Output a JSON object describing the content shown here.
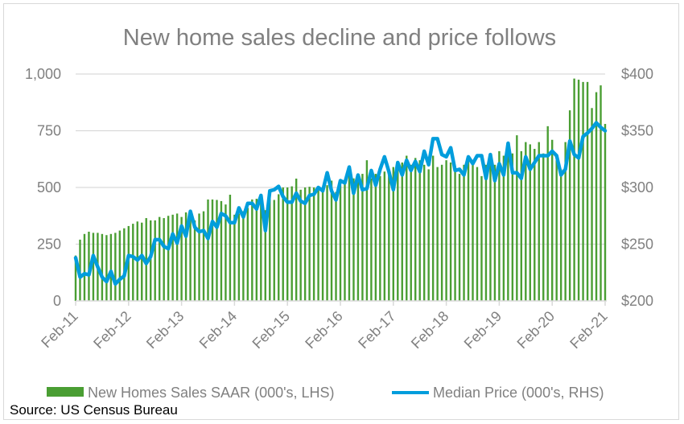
{
  "chart_data": {
    "type": "bar+line",
    "title": "New home sales decline and price follows",
    "x_tick_labels": [
      "Feb-11",
      "Feb-12",
      "Feb-13",
      "Feb-14",
      "Feb-15",
      "Feb-16",
      "Feb-17",
      "Feb-18",
      "Feb-19",
      "Feb-20",
      "Feb-21"
    ],
    "x_range": [
      "Feb-11",
      "Feb-21"
    ],
    "frequency": "monthly",
    "left_axis": {
      "ylim": [
        0,
        1000
      ],
      "ticks": [
        0,
        250,
        500,
        750,
        1000
      ],
      "tick_labels": [
        "0",
        "250",
        "500",
        "750",
        "1,000"
      ]
    },
    "right_axis": {
      "ylim": [
        200,
        400
      ],
      "ticks": [
        200,
        250,
        300,
        350,
        400
      ],
      "tick_labels": [
        "$200",
        "$250",
        "$300",
        "$350",
        "$400"
      ]
    },
    "grid": true,
    "legend_position": "bottom",
    "series": [
      {
        "name": "New Homes Sales SAAR (000's, LHS)",
        "type": "bar",
        "axis": "left",
        "color": "#4a9e33",
        "values": [
          200,
          270,
          295,
          305,
          300,
          300,
          295,
          290,
          295,
          300,
          310,
          320,
          330,
          340,
          350,
          345,
          365,
          355,
          355,
          370,
          365,
          375,
          380,
          385,
          370,
          390,
          395,
          355,
          385,
          395,
          447,
          447,
          445,
          440,
          425,
          468,
          380,
          385,
          395,
          410,
          447,
          450,
          430,
          400,
          450,
          445,
          470,
          500,
          500,
          505,
          539,
          490,
          500,
          503,
          500,
          490,
          500,
          510,
          530,
          480,
          510,
          520,
          560,
          540,
          530,
          560,
          620,
          540,
          560,
          550,
          570,
          560,
          590,
          600,
          610,
          640,
          600,
          630,
          620,
          600,
          580,
          640,
          590,
          600,
          620,
          610,
          590,
          560,
          600,
          620,
          610,
          590,
          550,
          600,
          630,
          600,
          660,
          640,
          700,
          650,
          730,
          660,
          700,
          690,
          670,
          700,
          650,
          770,
          710,
          620,
          580,
          700,
          840,
          980,
          975,
          965,
          965,
          850,
          920,
          950,
          780
        ]
      },
      {
        "name": "Median Price (000's, RHS)",
        "type": "line",
        "axis": "right",
        "color": "#009ddc",
        "values": [
          238,
          221,
          224,
          223,
          240,
          230,
          221,
          217,
          226,
          215,
          219,
          222,
          240,
          239,
          236,
          240,
          233,
          239,
          254,
          254,
          248,
          246,
          259,
          251,
          266,
          257,
          279,
          265,
          261,
          262,
          255,
          270,
          265,
          277,
          275,
          269,
          269,
          282,
          274,
          286,
          286,
          281,
          293,
          262,
          297,
          298,
          301,
          292,
          287,
          287,
          295,
          288,
          286,
          293,
          294,
          300,
          297,
          313,
          297,
          289,
          306,
          304,
          318,
          295,
          311,
          298,
          299,
          315,
          302,
          316,
          327,
          314,
          298,
          322,
          311,
          324,
          315,
          323,
          314,
          332,
          320,
          343,
          343,
          329,
          327,
          335,
          315,
          316,
          311,
          327,
          321,
          328,
          328,
          308,
          329,
          306,
          321,
          311,
          339,
          313,
          313,
          308,
          327,
          316,
          322,
          328,
          328,
          328,
          332,
          328,
          311,
          316,
          341,
          329,
          326,
          345,
          348,
          352,
          357,
          353,
          350
        ]
      }
    ]
  },
  "source": "Source: US Census Bureau"
}
